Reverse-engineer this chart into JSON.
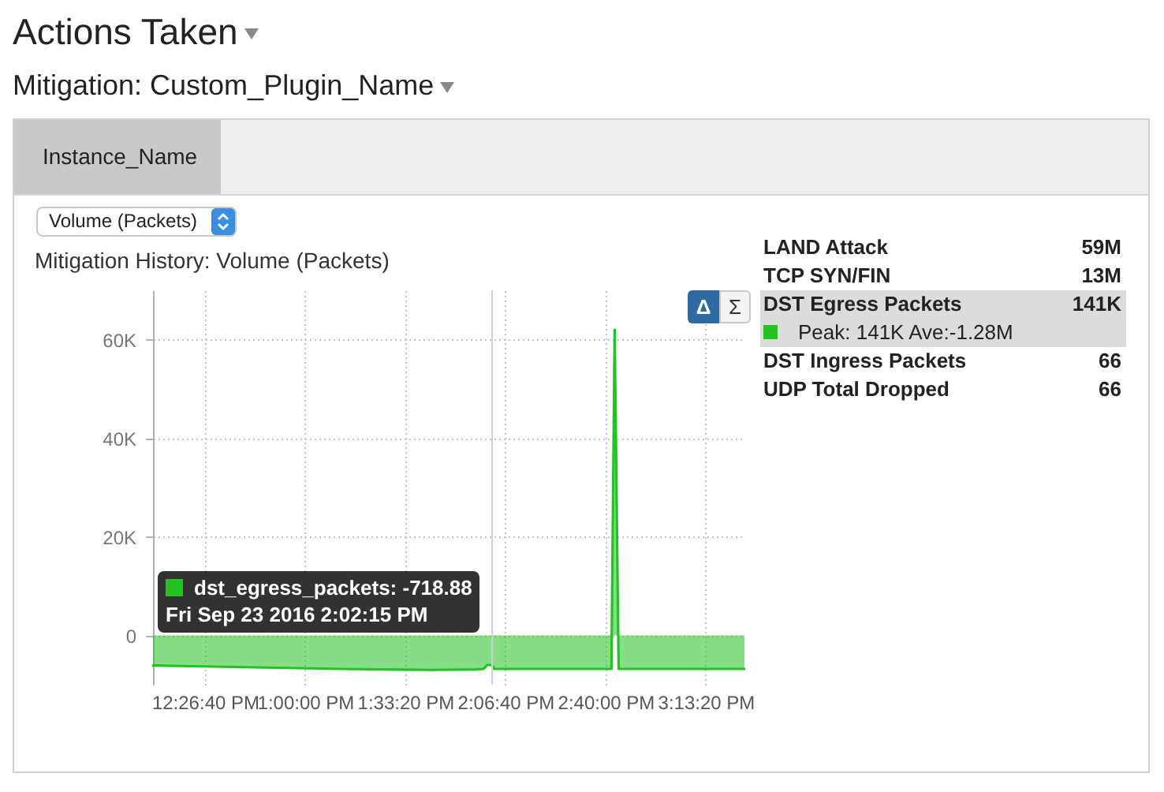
{
  "chart_data": {
    "type": "area",
    "title": "Mitigation History: Volume (Packets)",
    "series": [
      {
        "name": "DST Egress Packets",
        "color": "#22c322",
        "x": [
          12.156,
          12.6,
          13.2,
          13.7,
          13.95,
          13.99,
          14.01,
          14.035,
          14.05,
          14.699,
          14.717,
          14.739,
          15.437
        ],
        "values": [
          -6100,
          -6400,
          -6800,
          -7000,
          -6900,
          -6800,
          -6000,
          -6000,
          -6800,
          -6800,
          62000,
          -6800,
          -6800
        ]
      }
    ],
    "xlim": [
      12.156,
      15.437
    ],
    "xticks": [
      {
        "value": 12.44444,
        "label": "12:26:40 PM"
      },
      {
        "value": 13,
        "label": "1:00:00 PM"
      },
      {
        "value": 13.55556,
        "label": "1:33:20 PM"
      },
      {
        "value": 14.11111,
        "label": "2:06:40 PM"
      },
      {
        "value": 14.66667,
        "label": "2:40:00 PM"
      },
      {
        "value": 15.22222,
        "label": "3:13:20 PM"
      }
    ],
    "ylim": [
      -10000,
      70000
    ],
    "yticks": [
      0,
      {
        "value": 20000,
        "label": "20K"
      },
      {
        "value": 40000,
        "label": "40K"
      },
      {
        "value": 60000,
        "label": "60K"
      }
    ],
    "grid": true,
    "legend": "right",
    "ref_lines": [
      {
        "axis": "x",
        "value": 14.0375,
        "color": "#d0d0d0"
      }
    ],
    "annotations": [
      "Actions Taken",
      "Mitigation: Custom_Plugin_Name",
      "Instance_Name",
      "Volume (Packets)",
      "Δ",
      "Σ",
      "LAND Attack",
      "59M",
      "TCP SYN/FIN",
      "13M",
      "141K",
      "Peak: 141K Ave:-1.28M",
      "DST Ingress Packets",
      "66",
      "UDP Total Dropped",
      "66",
      "dst_egress_packets: -718.88",
      "Fri Sep 23 2016 2:02:15 PM"
    ]
  }
}
